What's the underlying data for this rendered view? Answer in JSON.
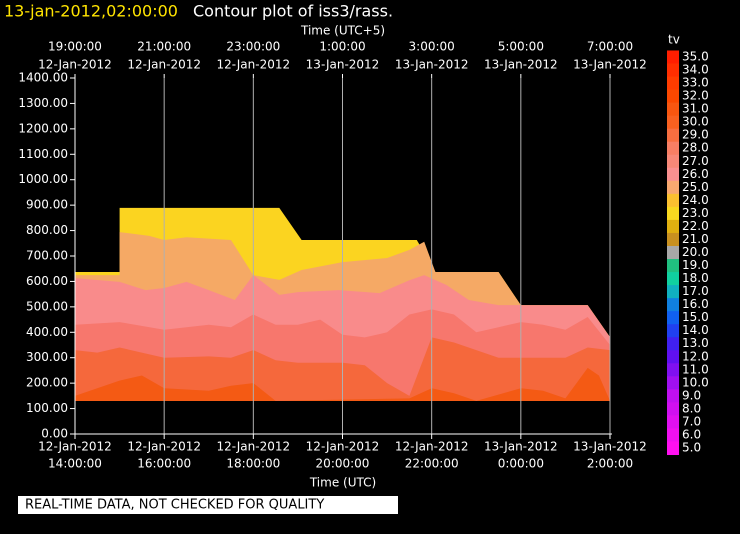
{
  "chart_data": {
    "type": "contour",
    "timestamp": "13-jan-2012,02:00:00",
    "title": "Contour plot of iss3/rass.",
    "x_label": "Time (UTC)",
    "x2_label": "Time (UTC+5)",
    "note": "REAL-TIME DATA, NOT CHECKED FOR QUALITY",
    "xlim": [
      "2012-01-12T14:00",
      "2012-01-13T02:00"
    ],
    "xticks": [
      {
        "value": "2012-01-12T14:00",
        "label": [
          "12-Jan-2012",
          "14:00:00"
        ]
      },
      {
        "value": "2012-01-12T16:00",
        "label": [
          "12-Jan-2012",
          "16:00:00"
        ]
      },
      {
        "value": "2012-01-12T18:00",
        "label": [
          "12-Jan-2012",
          "18:00:00"
        ]
      },
      {
        "value": "2012-01-12T20:00",
        "label": [
          "12-Jan-2012",
          "20:00:00"
        ]
      },
      {
        "value": "2012-01-12T22:00",
        "label": [
          "12-Jan-2012",
          "22:00:00"
        ]
      },
      {
        "value": "2012-01-13T00:00",
        "label": [
          "13-Jan-2012",
          "0:00:00"
        ]
      },
      {
        "value": "2012-01-13T02:00",
        "label": [
          "13-Jan-2012",
          "2:00:00"
        ]
      }
    ],
    "x2ticks": [
      {
        "value": "2012-01-12T14:00",
        "label": [
          "19:00:00",
          "12-Jan-2012"
        ]
      },
      {
        "value": "2012-01-12T16:00",
        "label": [
          "21:00:00",
          "12-Jan-2012"
        ]
      },
      {
        "value": "2012-01-12T18:00",
        "label": [
          "23:00:00",
          "12-Jan-2012"
        ]
      },
      {
        "value": "2012-01-12T20:00",
        "label": [
          "1:00:00",
          "13-Jan-2012"
        ]
      },
      {
        "value": "2012-01-12T22:00",
        "label": [
          "3:00:00",
          "13-Jan-2012"
        ]
      },
      {
        "value": "2012-01-13T00:00",
        "label": [
          "5:00:00",
          "13-Jan-2012"
        ]
      },
      {
        "value": "2012-01-13T02:00",
        "label": [
          "7:00:00",
          "13-Jan-2012"
        ]
      }
    ],
    "ylim": [
      0,
      1400
    ],
    "yticks": [
      {
        "value": 0,
        "label": "0.00"
      },
      {
        "value": 100,
        "label": "100.00"
      },
      {
        "value": 200,
        "label": "200.00"
      },
      {
        "value": 300,
        "label": "300.00"
      },
      {
        "value": 400,
        "label": "400.00"
      },
      {
        "value": 500,
        "label": "500.00"
      },
      {
        "value": 600,
        "label": "600.00"
      },
      {
        "value": 700,
        "label": "700.00"
      },
      {
        "value": 800,
        "label": "800.00"
      },
      {
        "value": 900,
        "label": "900.00"
      },
      {
        "value": 1000,
        "label": "1000.00"
      },
      {
        "value": 1100,
        "label": "1100.00"
      },
      {
        "value": 1200,
        "label": "1200.00"
      },
      {
        "value": 1300,
        "label": "1300.00"
      },
      {
        "value": 1400,
        "label": "1400.00"
      }
    ],
    "grid": true,
    "fill_base": 130,
    "series": [
      {
        "color": "#fbd420",
        "x": [
          "2012-01-12T14:00",
          "2012-01-12T15:00",
          "2012-01-12T15:00",
          "2012-01-12T18:35",
          "2012-01-12T19:05",
          "2012-01-12T21:40",
          "2012-01-12T22:05",
          "2012-01-12T23:30",
          "2012-01-13T00:00",
          "2012-01-13T01:30",
          "2012-01-13T02:00"
        ],
        "values": [
          637,
          637,
          889,
          889,
          763,
          763,
          637,
          637,
          507,
          507,
          381
        ]
      },
      {
        "color": "#f5a965",
        "x": [
          "2012-01-12T14:00",
          "2012-01-12T15:00",
          "2012-01-12T15:00",
          "2012-01-12T15:40",
          "2012-01-12T16:00",
          "2012-01-12T16:30",
          "2012-01-12T17:30",
          "2012-01-12T18:00",
          "2012-01-12T18:35",
          "2012-01-12T19:05",
          "2012-01-12T20:00",
          "2012-01-12T21:00",
          "2012-01-12T21:30",
          "2012-01-12T21:50",
          "2012-01-12T22:05",
          "2012-01-12T23:30",
          "2012-01-13T00:00"
        ],
        "values": [
          625,
          625,
          794,
          779,
          763,
          774,
          763,
          625,
          606,
          645,
          676,
          692,
          724,
          756,
          637,
          637,
          507
        ]
      },
      {
        "color": "#f98b8b",
        "x": [
          "2012-01-12T14:00",
          "2012-01-12T15:00",
          "2012-01-12T15:35",
          "2012-01-12T16:00",
          "2012-01-12T16:30",
          "2012-01-12T17:00",
          "2012-01-12T17:35",
          "2012-01-12T18:00",
          "2012-01-12T18:35",
          "2012-01-12T19:00",
          "2012-01-12T19:55",
          "2012-01-12T20:50",
          "2012-01-12T21:30",
          "2012-01-12T21:50",
          "2012-01-12T22:20",
          "2012-01-12T22:50",
          "2012-01-12T23:30",
          "2012-01-13T00:00",
          "2012-01-13T01:30",
          "2012-01-13T02:00"
        ],
        "values": [
          613,
          598,
          566,
          574,
          598,
          566,
          527,
          625,
          547,
          558,
          566,
          554,
          605,
          625,
          586,
          527,
          507,
          507,
          507,
          381
        ]
      },
      {
        "color": "#f7776d",
        "x": [
          "2012-01-12T14:00",
          "2012-01-12T15:00",
          "2012-01-12T16:00",
          "2012-01-12T17:00",
          "2012-01-12T17:30",
          "2012-01-12T18:00",
          "2012-01-12T18:30",
          "2012-01-12T19:00",
          "2012-01-12T19:30",
          "2012-01-12T20:00",
          "2012-01-12T20:30",
          "2012-01-12T21:00",
          "2012-01-12T21:30",
          "2012-01-12T22:00",
          "2012-01-12T22:30",
          "2012-01-12T23:00",
          "2012-01-12T23:30",
          "2012-01-13T00:00",
          "2012-01-13T00:30",
          "2012-01-13T01:00",
          "2012-01-13T01:30",
          "2012-01-13T02:00"
        ],
        "values": [
          430,
          440,
          410,
          430,
          420,
          470,
          430,
          430,
          450,
          390,
          380,
          400,
          470,
          490,
          470,
          400,
          420,
          440,
          430,
          410,
          460,
          350
        ]
      },
      {
        "color": "#f5683c",
        "x": [
          "2012-01-12T14:00",
          "2012-01-12T14:30",
          "2012-01-12T15:00",
          "2012-01-12T16:00",
          "2012-01-12T17:00",
          "2012-01-12T17:30",
          "2012-01-12T18:00",
          "2012-01-12T18:30",
          "2012-01-12T19:00",
          "2012-01-12T20:00",
          "2012-01-12T20:30",
          "2012-01-12T21:00",
          "2012-01-12T21:30",
          "2012-01-12T22:00",
          "2012-01-12T22:30",
          "2012-01-12T23:00",
          "2012-01-12T23:30",
          "2012-01-13T00:00",
          "2012-01-13T01:00",
          "2012-01-13T01:30",
          "2012-01-13T02:00"
        ],
        "values": [
          330,
          320,
          340,
          300,
          305,
          300,
          330,
          290,
          280,
          280,
          270,
          200,
          150,
          380,
          360,
          330,
          300,
          300,
          300,
          340,
          330
        ]
      },
      {
        "color": "#f45a14",
        "x": [
          "2012-01-12T14:00",
          "2012-01-12T15:00",
          "2012-01-12T15:30",
          "2012-01-12T16:00",
          "2012-01-12T17:00",
          "2012-01-12T17:30",
          "2012-01-12T18:00",
          "2012-01-12T18:30",
          "2012-01-12T21:30",
          "2012-01-12T22:00",
          "2012-01-12T22:30",
          "2012-01-12T23:00",
          "2012-01-13T00:00",
          "2012-01-13T00:30",
          "2012-01-13T01:00",
          "2012-01-13T01:30",
          "2012-01-13T01:45",
          "2012-01-13T02:00"
        ],
        "values": [
          150,
          210,
          230,
          180,
          170,
          190,
          200,
          130,
          140,
          180,
          160,
          130,
          180,
          170,
          140,
          260,
          230,
          130
        ]
      }
    ],
    "colorbar_label": "tv",
    "colorbar_levels": [
      {
        "value": 35,
        "label": "35.0"
      },
      {
        "value": 34,
        "label": "34.0"
      },
      {
        "value": 33,
        "label": "33.0"
      },
      {
        "value": 32,
        "label": "32.0"
      },
      {
        "value": 31,
        "label": "31.0"
      },
      {
        "value": 30,
        "label": "30.0"
      },
      {
        "value": 29,
        "label": "29.0"
      },
      {
        "value": 28,
        "label": "28.0"
      },
      {
        "value": 27,
        "label": "27.0"
      },
      {
        "value": 26,
        "label": "26.0"
      },
      {
        "value": 25,
        "label": "25.0"
      },
      {
        "value": 24,
        "label": "24.0"
      },
      {
        "value": 23,
        "label": "23.0"
      },
      {
        "value": 22,
        "label": "22.0"
      },
      {
        "value": 21,
        "label": "21.0"
      },
      {
        "value": 20,
        "label": "20.0"
      },
      {
        "value": 19,
        "label": "19.0"
      },
      {
        "value": 18,
        "label": "18.0"
      },
      {
        "value": 17,
        "label": "17.0"
      },
      {
        "value": 16,
        "label": "16.0"
      },
      {
        "value": 15,
        "label": "15.0"
      },
      {
        "value": 14,
        "label": "14.0"
      },
      {
        "value": 13,
        "label": "13.0"
      },
      {
        "value": 12,
        "label": "12.0"
      },
      {
        "value": 11,
        "label": "11.0"
      },
      {
        "value": 10,
        "label": "10.0"
      },
      {
        "value": 9,
        "label": "9.0"
      },
      {
        "value": 8,
        "label": "8.0"
      },
      {
        "value": 7,
        "label": "7.0"
      },
      {
        "value": 6,
        "label": "6.0"
      },
      {
        "value": 5,
        "label": "5.0"
      }
    ],
    "colorbar_colors": [
      "#ff1e00",
      "#ff2e00",
      "#ff3c00",
      "#fb4800",
      "#f85610",
      "#f86020",
      "#f76e40",
      "#f77e64",
      "#f78878",
      "#fa9090",
      "#f8a870",
      "#fbc030",
      "#f8d820",
      "#e0b010",
      "#c89020",
      "#a8a8a8",
      "#20c080",
      "#10d0a0",
      "#10b0c0",
      "#1080e0",
      "#1060f0",
      "#2040f0",
      "#4020f0",
      "#6010f0",
      "#8010f0",
      "#a010f0",
      "#c010f0",
      "#d010f0",
      "#e010f0",
      "#f010f0",
      "#ff10f0"
    ]
  }
}
